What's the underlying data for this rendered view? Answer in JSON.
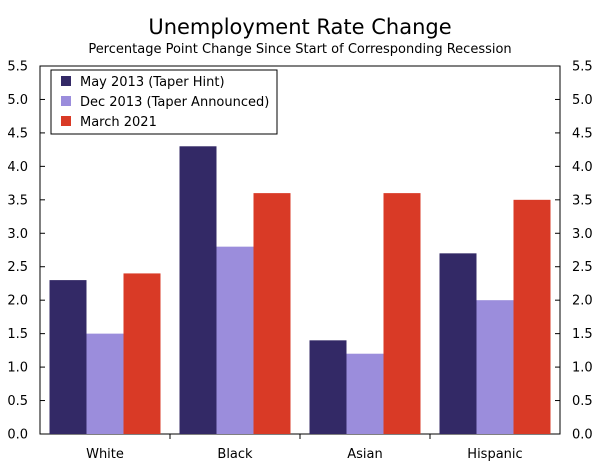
{
  "chart_data": {
    "type": "bar",
    "title": "Unemployment Rate Change",
    "subtitle": "Percentage Point Change Since Start of Corresponding Recession",
    "xlabel": "",
    "ylabel": "",
    "ylim": [
      0,
      5.5
    ],
    "y_ticks": [
      "0.0",
      "0.5",
      "1.0",
      "1.5",
      "2.0",
      "2.5",
      "3.0",
      "3.5",
      "4.0",
      "4.5",
      "5.0",
      "5.5"
    ],
    "categories": [
      "White",
      "Black",
      "Asian",
      "Hispanic"
    ],
    "series": [
      {
        "name": "May 2013 (Taper Hint)",
        "color": "#332966",
        "values": [
          2.3,
          4.3,
          1.4,
          2.7
        ]
      },
      {
        "name": "Dec 2013 (Taper Announced)",
        "color": "#9b8ddc",
        "values": [
          1.5,
          2.8,
          1.2,
          2.0
        ]
      },
      {
        "name": "March 2021",
        "color": "#d93a26",
        "values": [
          2.4,
          3.6,
          3.6,
          3.5
        ]
      }
    ],
    "legend_position": "top-left",
    "grid": false
  }
}
